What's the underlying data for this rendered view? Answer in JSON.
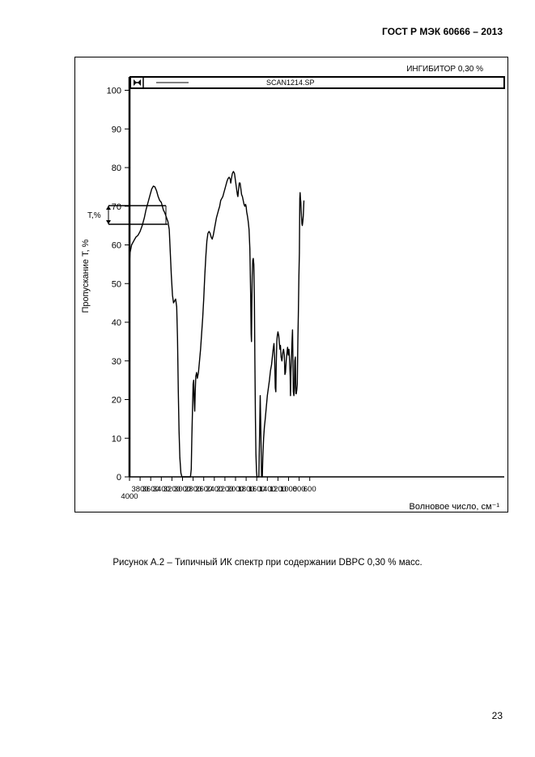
{
  "header": {
    "standard": "ГОСТ Р МЭК 60666 – 2013"
  },
  "figure": {
    "sample_label": "ИНГИБИТОР 0,30 %",
    "legend_scan": "SCAN1214.SP",
    "transmittance_marker": "T,%"
  },
  "caption": "Рисунок А.2 – Типичный ИК спектр при содержании DBPC 0,30 % масс.",
  "page_number": "23",
  "chart_data": {
    "type": "line",
    "title": "",
    "xlabel": "Волновое число, см⁻¹",
    "ylabel": "Пропускание Т, %",
    "xlim": [
      4000,
      500
    ],
    "ylim": [
      0,
      100
    ],
    "x_ticks": [
      4000,
      3800,
      3600,
      3400,
      3200,
      3000,
      2800,
      2600,
      2400,
      2200,
      2000,
      1800,
      1600,
      1400,
      1200,
      1000,
      800,
      600
    ],
    "y_ticks": [
      0,
      10,
      20,
      30,
      40,
      50,
      60,
      70,
      80,
      90,
      100
    ],
    "grid": false,
    "legend": "top",
    "series": [
      {
        "color": "#000000",
        "points": [
          [
            4000,
            0
          ],
          [
            3997,
            56
          ],
          [
            3990,
            58
          ],
          [
            3960,
            60
          ],
          [
            3920,
            61
          ],
          [
            3880,
            62
          ],
          [
            3840,
            62.5
          ],
          [
            3800,
            63.5
          ],
          [
            3760,
            65
          ],
          [
            3720,
            67
          ],
          [
            3690,
            69
          ],
          [
            3650,
            71
          ],
          [
            3610,
            73
          ],
          [
            3580,
            74.5
          ],
          [
            3550,
            75.2
          ],
          [
            3520,
            75
          ],
          [
            3490,
            74
          ],
          [
            3460,
            72.5
          ],
          [
            3430,
            71.5
          ],
          [
            3400,
            71
          ],
          [
            3380,
            70
          ],
          [
            3360,
            69
          ],
          [
            3340,
            68.5
          ],
          [
            3320,
            67.8
          ],
          [
            3300,
            67
          ],
          [
            3275,
            66
          ],
          [
            3250,
            64
          ],
          [
            3230,
            58
          ],
          [
            3210,
            52
          ],
          [
            3190,
            47
          ],
          [
            3170,
            45
          ],
          [
            3150,
            45.5
          ],
          [
            3130,
            46
          ],
          [
            3110,
            44
          ],
          [
            3095,
            36
          ],
          [
            3080,
            22
          ],
          [
            3065,
            12
          ],
          [
            3050,
            5
          ],
          [
            3030,
            1
          ],
          [
            3010,
            0
          ],
          [
            2850,
            0
          ],
          [
            2835,
            2
          ],
          [
            2825,
            10
          ],
          [
            2810,
            18
          ],
          [
            2800,
            24
          ],
          [
            2790,
            25
          ],
          [
            2780,
            20
          ],
          [
            2770,
            17
          ],
          [
            2760,
            22
          ],
          [
            2750,
            26
          ],
          [
            2735,
            27
          ],
          [
            2720,
            25.5
          ],
          [
            2700,
            27
          ],
          [
            2680,
            30
          ],
          [
            2660,
            33
          ],
          [
            2640,
            37
          ],
          [
            2620,
            41
          ],
          [
            2600,
            46
          ],
          [
            2580,
            52
          ],
          [
            2560,
            57
          ],
          [
            2540,
            61
          ],
          [
            2520,
            63
          ],
          [
            2500,
            63.5
          ],
          [
            2480,
            63
          ],
          [
            2460,
            62
          ],
          [
            2440,
            61.5
          ],
          [
            2420,
            62.5
          ],
          [
            2400,
            64
          ],
          [
            2380,
            65.5
          ],
          [
            2360,
            67
          ],
          [
            2340,
            68
          ],
          [
            2320,
            69
          ],
          [
            2300,
            70
          ],
          [
            2280,
            71.5
          ],
          [
            2260,
            72
          ],
          [
            2240,
            72.5
          ],
          [
            2220,
            73.5
          ],
          [
            2200,
            74.5
          ],
          [
            2180,
            75.5
          ],
          [
            2160,
            76.5
          ],
          [
            2140,
            77.2
          ],
          [
            2120,
            77.5
          ],
          [
            2100,
            77
          ],
          [
            2090,
            76
          ],
          [
            2080,
            77
          ],
          [
            2060,
            78.5
          ],
          [
            2040,
            79
          ],
          [
            2020,
            78.5
          ],
          [
            2000,
            76.5
          ],
          [
            1980,
            74.5
          ],
          [
            1965,
            73
          ],
          [
            1955,
            72.5
          ],
          [
            1945,
            74
          ],
          [
            1930,
            76
          ],
          [
            1915,
            76
          ],
          [
            1900,
            74.5
          ],
          [
            1885,
            73
          ],
          [
            1870,
            72.5
          ],
          [
            1855,
            71.5
          ],
          [
            1840,
            70.5
          ],
          [
            1825,
            70
          ],
          [
            1810,
            70.5
          ],
          [
            1800,
            70
          ],
          [
            1790,
            68.5
          ],
          [
            1775,
            67.5
          ],
          [
            1760,
            66
          ],
          [
            1745,
            64
          ],
          [
            1730,
            59
          ],
          [
            1715,
            47
          ],
          [
            1705,
            37
          ],
          [
            1700,
            35
          ],
          [
            1693,
            44
          ],
          [
            1685,
            52
          ],
          [
            1675,
            56
          ],
          [
            1665,
            56.5
          ],
          [
            1655,
            55
          ],
          [
            1645,
            46
          ],
          [
            1635,
            30
          ],
          [
            1625,
            15
          ],
          [
            1615,
            6
          ],
          [
            1605,
            1.5
          ],
          [
            1595,
            0
          ],
          [
            1560,
            0
          ],
          [
            1550,
            8
          ],
          [
            1540,
            16
          ],
          [
            1535,
            21
          ],
          [
            1525,
            14
          ],
          [
            1515,
            5
          ],
          [
            1508,
            0
          ],
          [
            1495,
            0
          ],
          [
            1485,
            5
          ],
          [
            1470,
            10
          ],
          [
            1455,
            13
          ],
          [
            1440,
            15
          ],
          [
            1420,
            18
          ],
          [
            1400,
            21
          ],
          [
            1380,
            23
          ],
          [
            1360,
            25
          ],
          [
            1340,
            27.5
          ],
          [
            1320,
            29
          ],
          [
            1305,
            31
          ],
          [
            1290,
            33
          ],
          [
            1275,
            34.5
          ],
          [
            1262,
            31
          ],
          [
            1250,
            23
          ],
          [
            1240,
            22
          ],
          [
            1232,
            29
          ],
          [
            1222,
            35
          ],
          [
            1212,
            36.5
          ],
          [
            1200,
            37.5
          ],
          [
            1185,
            36.5
          ],
          [
            1172,
            34.5
          ],
          [
            1162,
            33
          ],
          [
            1152,
            34
          ],
          [
            1140,
            31
          ],
          [
            1125,
            30
          ],
          [
            1110,
            32
          ],
          [
            1095,
            33
          ],
          [
            1080,
            31.5
          ],
          [
            1068,
            26.5
          ],
          [
            1058,
            27
          ],
          [
            1045,
            30
          ],
          [
            1030,
            32
          ],
          [
            1018,
            33.5
          ],
          [
            1005,
            31.5
          ],
          [
            993,
            33
          ],
          [
            980,
            30
          ],
          [
            970,
            26
          ],
          [
            963,
            21
          ],
          [
            955,
            27
          ],
          [
            945,
            31
          ],
          [
            935,
            35
          ],
          [
            925,
            38
          ],
          [
            918,
            31
          ],
          [
            910,
            22
          ],
          [
            900,
            21
          ],
          [
            890,
            23
          ],
          [
            882,
            30
          ],
          [
            872,
            31
          ],
          [
            862,
            21.5
          ],
          [
            855,
            21.5
          ],
          [
            845,
            22.5
          ],
          [
            835,
            24
          ],
          [
            825,
            35
          ],
          [
            815,
            42
          ],
          [
            805,
            52
          ],
          [
            795,
            58
          ],
          [
            788,
            72
          ],
          [
            782,
            73.5
          ],
          [
            775,
            72
          ],
          [
            768,
            71
          ],
          [
            762,
            69
          ],
          [
            755,
            67.5
          ],
          [
            748,
            65.5
          ],
          [
            740,
            65
          ],
          [
            732,
            66
          ],
          [
            722,
            67.5
          ],
          [
            715,
            70
          ],
          [
            710,
            71.5
          ]
        ]
      }
    ]
  }
}
